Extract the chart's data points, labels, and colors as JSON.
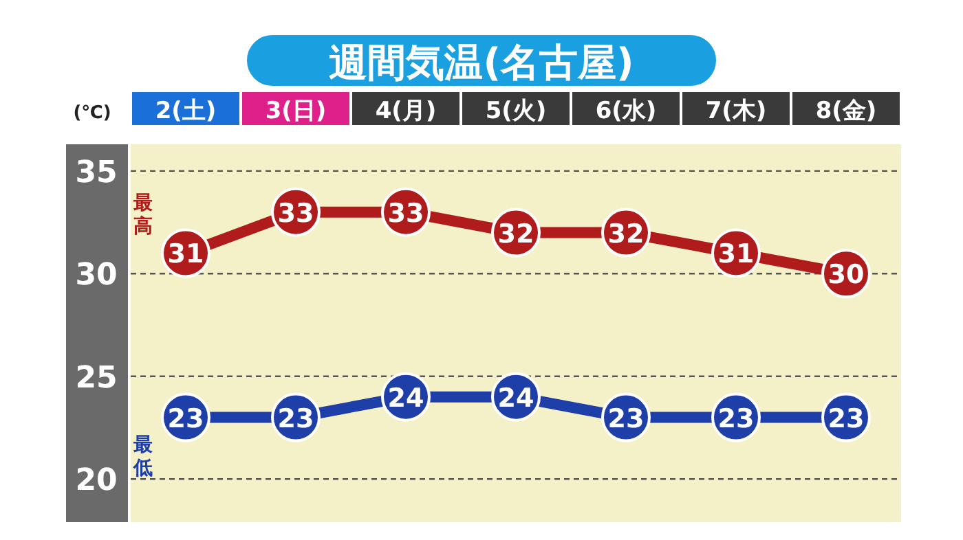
{
  "chart_data": {
    "type": "line",
    "title": "週間気温(名古屋)",
    "ylabel": "(℃)",
    "categories": [
      "2(土)",
      "3(日)",
      "4(月)",
      "5(火)",
      "6(水)",
      "7(木)",
      "8(金)"
    ],
    "series": [
      {
        "name": "最高",
        "color": "#b01c1c",
        "values": [
          31,
          33,
          33,
          32,
          32,
          31,
          30
        ]
      },
      {
        "name": "最低",
        "color": "#1e3ea8",
        "values": [
          23,
          23,
          24,
          24,
          23,
          23,
          23
        ]
      }
    ],
    "ylim": [
      17.9,
      36.3
    ],
    "yticks": [
      20,
      25,
      30,
      35
    ],
    "grid": "y",
    "data_labels": true,
    "marker": "circle",
    "line_style": "solid"
  }
}
